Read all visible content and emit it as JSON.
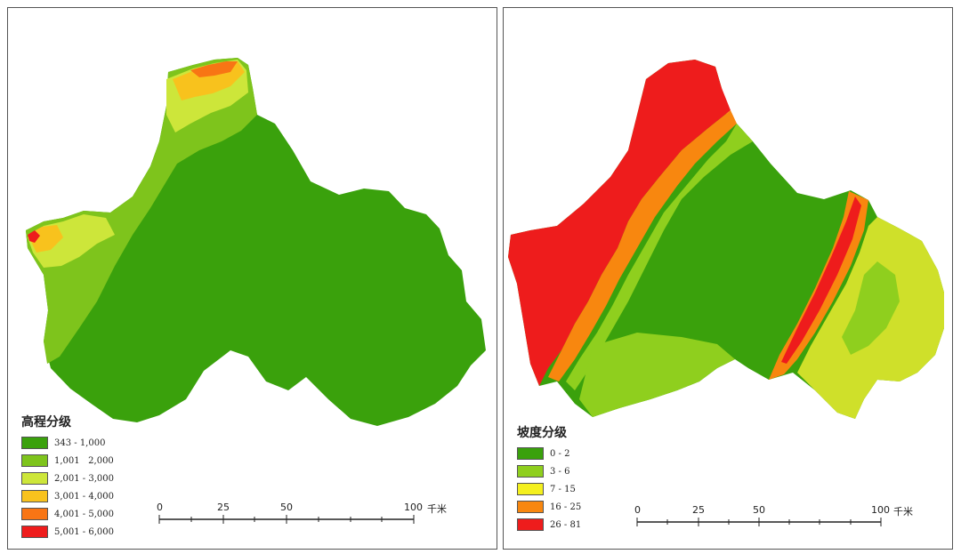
{
  "left_map": {
    "legend_title": "高程分级",
    "classes": [
      {
        "label": "343 - 1,000",
        "color": "#3aa10c"
      },
      {
        "label": "1,001   2,000",
        "color": "#7ec41c"
      },
      {
        "label": "2,001 - 3,000",
        "color": "#cde63a"
      },
      {
        "label": "3,001 - 4,000",
        "color": "#f8c21d"
      },
      {
        "label": "4,001 - 5,000",
        "color": "#f87514"
      },
      {
        "label": "5,001 - 6,000",
        "color": "#ee1c1c"
      }
    ],
    "scale": {
      "ticks": [
        "0",
        "25",
        "50",
        "100"
      ],
      "unit": "千米"
    }
  },
  "right_map": {
    "legend_title": "坡度分级",
    "classes": [
      {
        "label": "0 - 2",
        "color": "#3aa10c"
      },
      {
        "label": "3 - 6",
        "color": "#8fcf1e"
      },
      {
        "label": "7 - 15",
        "color": "#f4f01e"
      },
      {
        "label": "16 - 25",
        "color": "#f8870f"
      },
      {
        "label": "26 - 81",
        "color": "#ee1c1c"
      }
    ],
    "scale": {
      "ticks": [
        "0",
        "25",
        "50",
        "100"
      ],
      "unit": "千米"
    }
  }
}
